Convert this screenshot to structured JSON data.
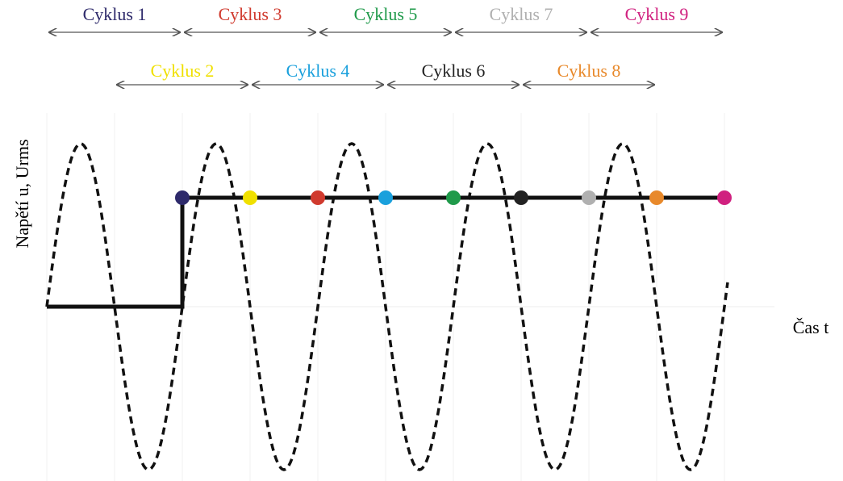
{
  "y_axis_label": "Napětí u, Urms",
  "x_axis_label": "Čas t",
  "cycles": [
    {
      "label": "Cyklus 1",
      "color": "#2e2a6b"
    },
    {
      "label": "Cyklus 2",
      "color": "#f0e000"
    },
    {
      "label": "Cyklus 3",
      "color": "#d03a2e"
    },
    {
      "label": "Cyklus 4",
      "color": "#1aa0dc"
    },
    {
      "label": "Cyklus 5",
      "color": "#1f9a4a"
    },
    {
      "label": "Cyklus 6",
      "color": "#222222"
    },
    {
      "label": "Cyklus 7",
      "color": "#b0b0b0"
    },
    {
      "label": "Cyklus 8",
      "color": "#e8892b"
    },
    {
      "label": "Cyklus 9",
      "color": "#d0207f"
    }
  ]
}
